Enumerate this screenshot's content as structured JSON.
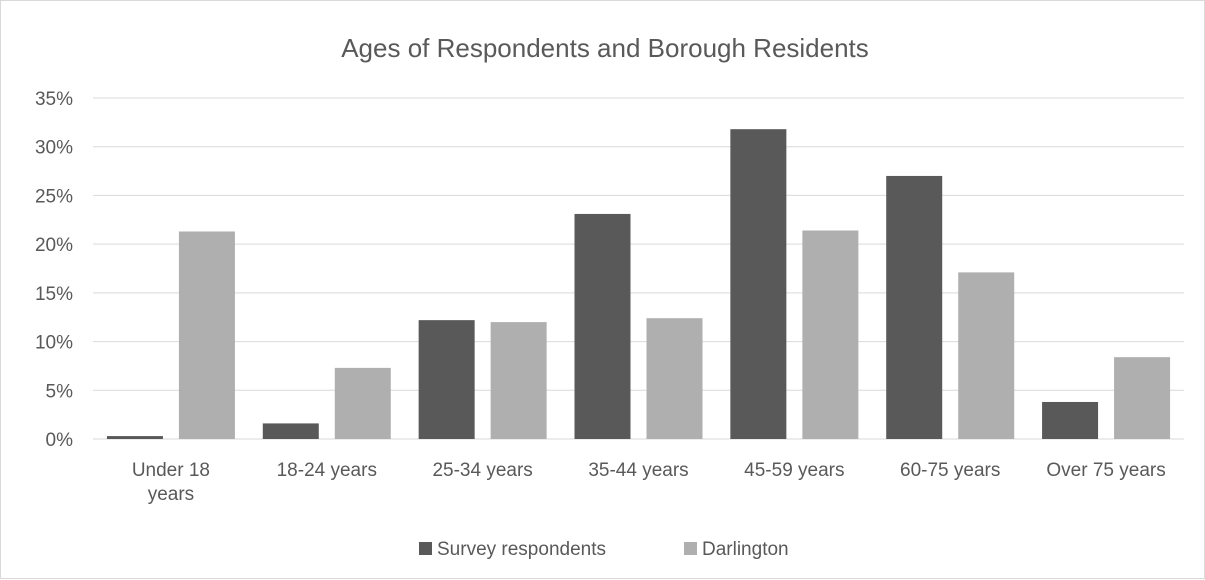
{
  "chart_data": {
    "type": "bar",
    "title": "Ages of Respondents and Borough Residents",
    "categories": [
      [
        "Under 18",
        "years"
      ],
      [
        "18-24 years"
      ],
      [
        "25-34 years"
      ],
      [
        "35-44 years"
      ],
      [
        "45-59 years"
      ],
      [
        "60-75 years"
      ],
      [
        "Over 75 years"
      ]
    ],
    "series": [
      {
        "name": "Survey respondents",
        "color": "#595959",
        "values": [
          0.3,
          1.6,
          12.2,
          23.1,
          31.8,
          27.0,
          3.8
        ]
      },
      {
        "name": "Darlington",
        "color": "#afafaf",
        "values": [
          21.3,
          7.3,
          12.0,
          12.4,
          21.4,
          17.1,
          8.4
        ]
      }
    ],
    "ylim": [
      0,
      35
    ],
    "yticks": [
      0,
      5,
      10,
      15,
      20,
      25,
      30,
      35
    ],
    "ytick_labels": [
      "0%",
      "5%",
      "10%",
      "15%",
      "20%",
      "25%",
      "30%",
      "35%"
    ],
    "grid": true,
    "legend_position": "bottom",
    "gridline_color": "#d9d9d9"
  }
}
